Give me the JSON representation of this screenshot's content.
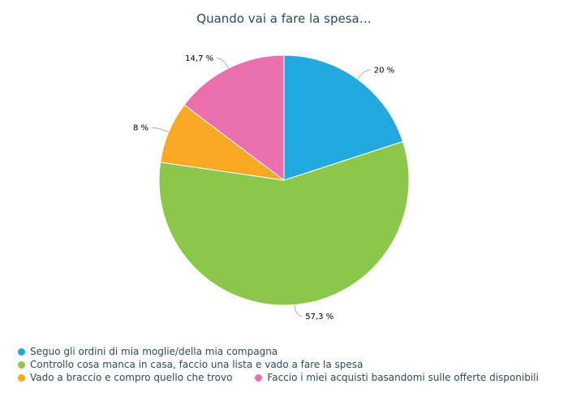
{
  "chart_data": {
    "type": "pie",
    "title": "Quando vai a fare la spesa…",
    "slices": [
      {
        "label": "Seguo gli ordini di mia moglie/della mia compagna",
        "value": 20,
        "display": "20 %",
        "color": "#21a9e0"
      },
      {
        "label": "Controllo cosa manca in casa, faccio una lista e vado a fare la spesa",
        "value": 57.3,
        "display": "57,3 %",
        "color": "#8bc74a"
      },
      {
        "label": "Vado a braccio e compro quello che trovo",
        "value": 8,
        "display": "8 %",
        "color": "#f9a823"
      },
      {
        "label": "Faccio i miei acquisti basandomi sulle offerte disponibili",
        "value": 14.7,
        "display": "14,7 %",
        "color": "#e96fad"
      }
    ],
    "legend_position": "bottom-left"
  }
}
